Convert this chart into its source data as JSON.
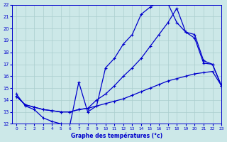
{
  "title": "Graphe des températures (°c)",
  "bg_color": "#cce8e8",
  "line_color": "#0000cc",
  "grid_color": "#aacece",
  "xlim": [
    -0.5,
    23
  ],
  "ylim": [
    12,
    22
  ],
  "xticks": [
    0,
    1,
    2,
    3,
    4,
    5,
    6,
    7,
    8,
    9,
    10,
    11,
    12,
    13,
    14,
    15,
    16,
    17,
    18,
    19,
    20,
    21,
    22,
    23
  ],
  "yticks": [
    12,
    13,
    14,
    15,
    16,
    17,
    18,
    19,
    20,
    21,
    22
  ],
  "series1_x": [
    0,
    1,
    2,
    3,
    4,
    5,
    6,
    7,
    8,
    9,
    10,
    11,
    12,
    13,
    14,
    15,
    16,
    17,
    18,
    19,
    20,
    21,
    22,
    23
  ],
  "series1_y": [
    14.5,
    13.5,
    13.2,
    12.5,
    12.2,
    12.0,
    11.9,
    15.5,
    13.0,
    13.5,
    16.7,
    17.5,
    18.7,
    19.5,
    21.2,
    21.8,
    22.2,
    22.1,
    20.5,
    19.7,
    19.2,
    17.1,
    17.0,
    15.2
  ],
  "series2_x": [
    0,
    1,
    2,
    3,
    4,
    5,
    6,
    7,
    8,
    9,
    10,
    11,
    12,
    13,
    14,
    15,
    16,
    17,
    18,
    19,
    20,
    21,
    22,
    23
  ],
  "series2_y": [
    14.3,
    13.6,
    13.4,
    13.2,
    13.1,
    13.0,
    13.0,
    13.2,
    13.3,
    14.0,
    14.5,
    15.2,
    16.0,
    16.7,
    17.5,
    18.5,
    19.5,
    20.5,
    21.7,
    19.7,
    19.5,
    17.3,
    17.0,
    15.2
  ],
  "series3_x": [
    0,
    1,
    2,
    3,
    4,
    5,
    6,
    7,
    8,
    9,
    10,
    11,
    12,
    13,
    14,
    15,
    16,
    17,
    18,
    19,
    20,
    21,
    22,
    23
  ],
  "series3_y": [
    14.3,
    13.6,
    13.4,
    13.2,
    13.1,
    13.0,
    13.0,
    13.2,
    13.3,
    13.5,
    13.7,
    13.9,
    14.1,
    14.4,
    14.7,
    15.0,
    15.3,
    15.6,
    15.8,
    16.0,
    16.2,
    16.3,
    16.4,
    15.2
  ]
}
